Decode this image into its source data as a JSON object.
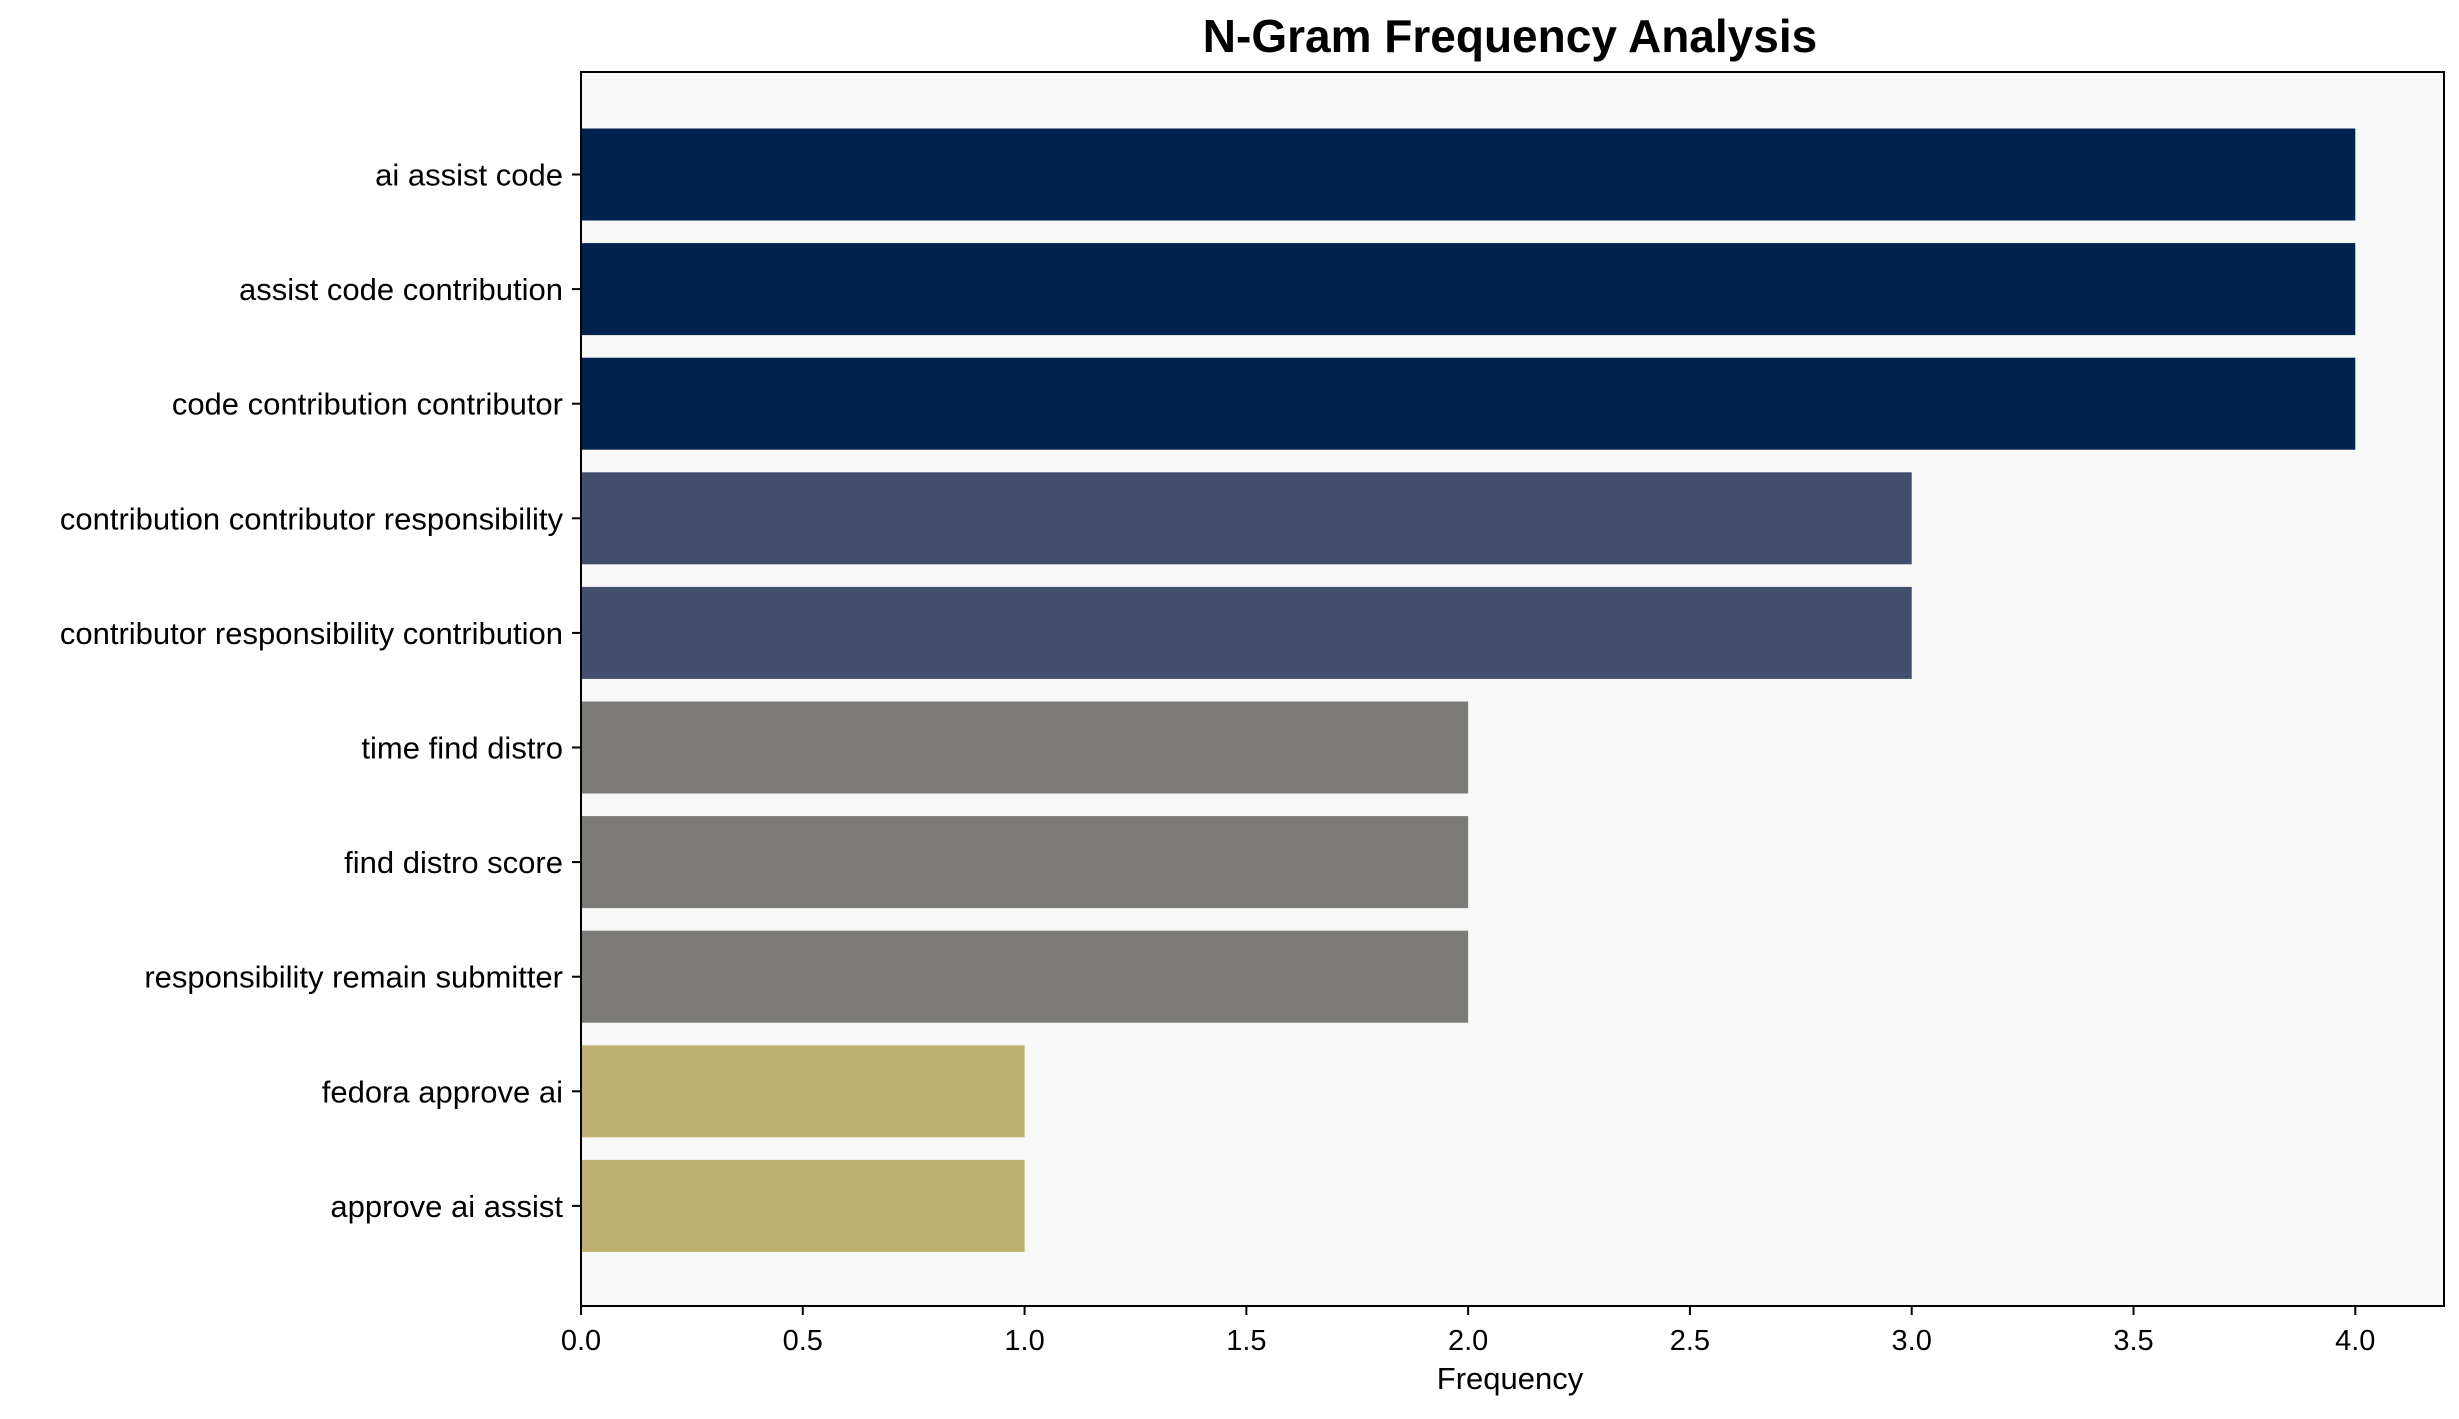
{
  "chart_data": {
    "type": "bar",
    "orientation": "horizontal",
    "title": "N-Gram Frequency Analysis",
    "xlabel": "Frequency",
    "ylabel": "",
    "xlim": [
      0,
      4.2
    ],
    "grid": false,
    "background_color": "#f8f8f8",
    "x_ticks": [
      "0.0",
      "0.5",
      "1.0",
      "1.5",
      "2.0",
      "2.5",
      "3.0",
      "3.5",
      "4.0"
    ],
    "categories": [
      "ai assist code",
      "assist code contribution",
      "code contribution contributor",
      "contribution contributor responsibility",
      "contributor responsibility contribution",
      "time find distro",
      "find distro score",
      "responsibility remain submitter",
      "fedora approve ai",
      "approve ai assist"
    ],
    "values": [
      4,
      4,
      4,
      3,
      3,
      2,
      2,
      2,
      1,
      1
    ],
    "colors": [
      "#00224e",
      "#00224e",
      "#00224e",
      "#434e6c",
      "#434e6c",
      "#7c7b78",
      "#7c7b78",
      "#7c7b78",
      "#bcaf6f",
      "#bcaf6f"
    ]
  }
}
